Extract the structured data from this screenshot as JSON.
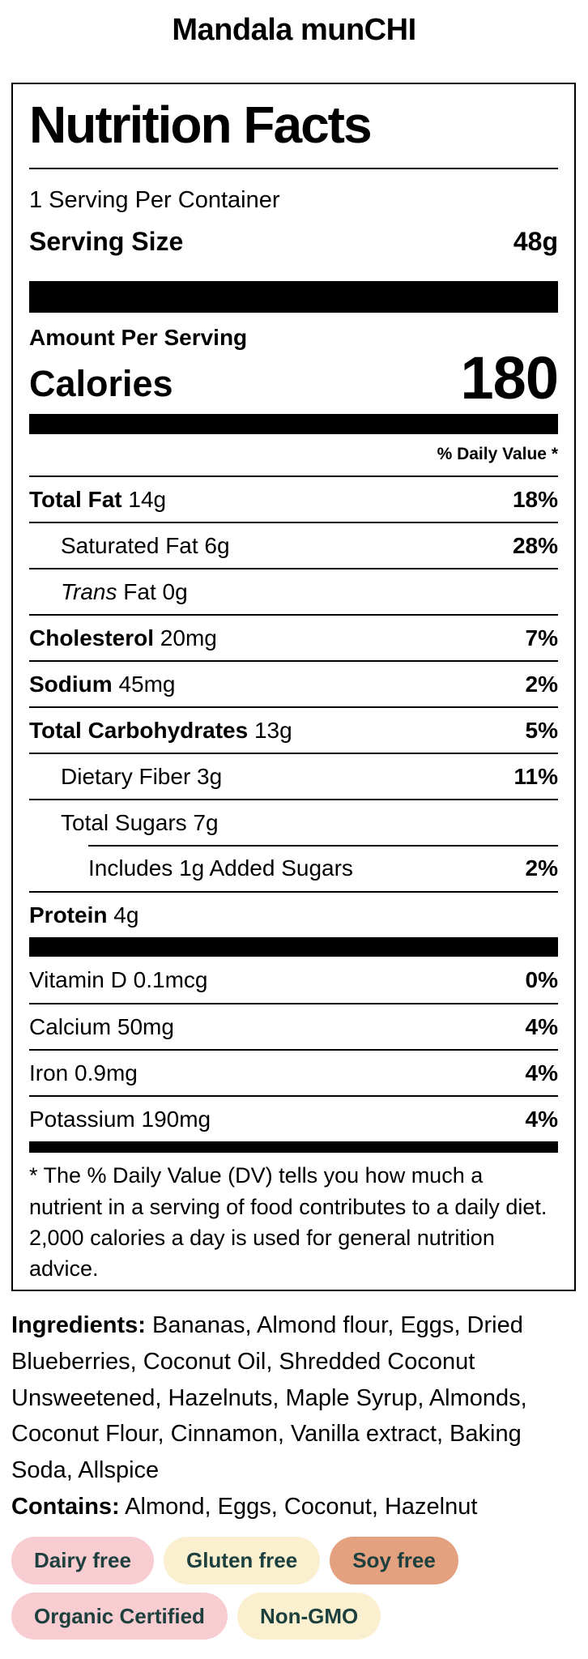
{
  "title": "Mandala munCHI",
  "label": {
    "heading": "Nutrition Facts",
    "servings_per_container": "1 Serving Per Container",
    "serving_size_label": "Serving Size",
    "serving_size_value": "48g",
    "amount_per_serving": "Amount Per Serving",
    "calories_label": "Calories",
    "calories_value": "180",
    "daily_value_header": "% Daily Value *",
    "rows": [
      {
        "bold": "Total Fat",
        "italic": "",
        "rest": " 14g",
        "dv": "18%",
        "indent": 0
      },
      {
        "bold": "",
        "italic": "",
        "rest": "Saturated Fat 6g",
        "dv": "28%",
        "indent": 1
      },
      {
        "bold": "",
        "italic": "Trans",
        "rest": " Fat 0g",
        "dv": "",
        "indent": 1
      },
      {
        "bold": "Cholesterol",
        "italic": "",
        "rest": " 20mg",
        "dv": "7%",
        "indent": 0
      },
      {
        "bold": "Sodium",
        "italic": "",
        "rest": " 45mg",
        "dv": "2%",
        "indent": 0
      },
      {
        "bold": "Total Carbohydrates",
        "italic": "",
        "rest": " 13g",
        "dv": "5%",
        "indent": 0
      },
      {
        "bold": "",
        "italic": "",
        "rest": "Dietary Fiber 3g",
        "dv": "11%",
        "indent": 1
      },
      {
        "bold": "",
        "italic": "",
        "rest": "Total Sugars 7g",
        "dv": "",
        "indent": 1
      },
      {
        "bold": "",
        "italic": "",
        "rest": "Includes 1g Added Sugars",
        "dv": "2%",
        "indent": 2
      },
      {
        "bold": "Protein",
        "italic": "",
        "rest": " 4g",
        "dv": "",
        "indent": 0
      }
    ],
    "micronutrients": [
      {
        "rest": "Vitamin D 0.1mcg",
        "dv": "0%"
      },
      {
        "rest": "Calcium 50mg",
        "dv": "4%"
      },
      {
        "rest": "Iron 0.9mg",
        "dv": "4%"
      },
      {
        "rest": "Potassium 190mg",
        "dv": "4%"
      }
    ],
    "footnote": "* The % Daily Value (DV) tells you how much a nutrient in a serving of food contributes to a daily diet. 2,000 calories a day is used for general nutrition advice."
  },
  "ingredients": {
    "label": "Ingredients:",
    "text": " Bananas, Almond flour, Eggs, Dried Blueberries, Coconut Oil, Shredded Coconut Unsweetened, Hazelnuts, Maple Syrup, Almonds, Coconut Flour, Cinnamon, Vanilla extract, Baking Soda, Allspice"
  },
  "contains": {
    "label": "Contains:",
    "text": " Almond, Eggs, Coconut, Hazelnut"
  },
  "badges": [
    {
      "label": "Dairy free",
      "bg": "#f8cdd2"
    },
    {
      "label": "Gluten free",
      "bg": "#faf0cf"
    },
    {
      "label": "Soy free",
      "bg": "#e4a17f"
    },
    {
      "label": "Organic Certified",
      "bg": "#f8cdd2"
    },
    {
      "label": "Non-GMO",
      "bg": "#faf0cf"
    }
  ],
  "colors": {
    "badge_text": "#1d403e",
    "label_border": "#000000",
    "background": "#ffffff"
  }
}
